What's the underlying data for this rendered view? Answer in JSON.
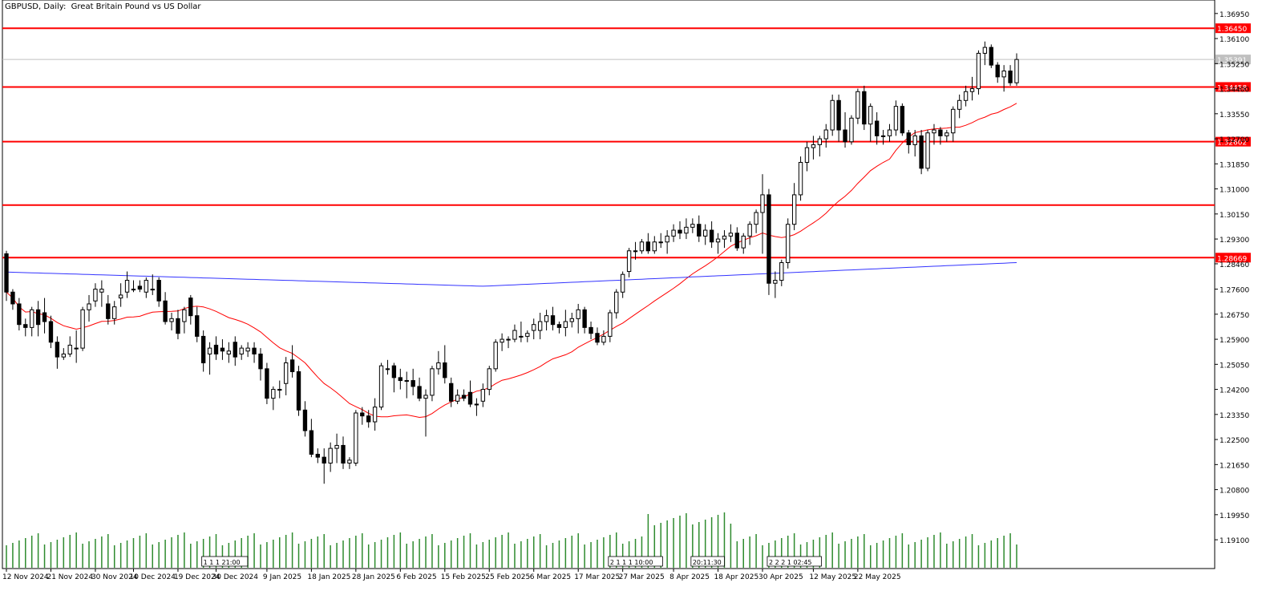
{
  "chart_data": {
    "type": "candlestick",
    "title": "GBPUSD, Daily:  Great Britain Pound vs US Dollar",
    "y_ticks": [
      "1.36950",
      "1.36100",
      "1.35250",
      "1.34400",
      "1.33550",
      "1.32700",
      "1.31850",
      "1.31000",
      "1.30150",
      "1.29300",
      "1.28460",
      "1.27600",
      "1.26750",
      "1.25900",
      "1.25050",
      "1.24200",
      "1.23350",
      "1.22500",
      "1.21650",
      "1.20800",
      "1.19950",
      "1.19100"
    ],
    "ylim": [
      1.1864,
      1.3719
    ],
    "x_tick_labels": [
      {
        "label": "12 Nov 2024",
        "i": 0
      },
      {
        "label": "21 Nov 2024",
        "i": 7
      },
      {
        "label": "30 Nov 2024",
        "i": 14
      },
      {
        "label": "10 Dec 2024",
        "i": 20
      },
      {
        "label": "19 Dec 2024",
        "i": 27
      },
      {
        "label": "30 Dec 2024",
        "i": 33
      },
      {
        "label": "9 Jan 2025",
        "i": 41
      },
      {
        "label": "18 Jan 2025",
        "i": 48
      },
      {
        "label": "28 Jan 2025",
        "i": 55
      },
      {
        "label": "6 Feb 2025",
        "i": 62
      },
      {
        "label": "15 Feb 2025",
        "i": 69
      },
      {
        "label": "25 Feb 2025",
        "i": 76
      },
      {
        "label": "6 Mar 2025",
        "i": 83
      },
      {
        "label": "17 Mar 2025",
        "i": 90
      },
      {
        "label": "27 Mar 2025",
        "i": 97
      },
      {
        "label": "8 Apr 2025",
        "i": 105
      },
      {
        "label": "18 Apr 2025",
        "i": 112
      },
      {
        "label": "30 Apr 2025",
        "i": 119
      },
      {
        "label": "12 May 2025",
        "i": 127
      },
      {
        "label": "22 May 2025",
        "i": 134
      }
    ],
    "current_price": "1.35391",
    "levels": [
      {
        "value": 1.3645,
        "label": "1.36450",
        "color": "#ff0000"
      },
      {
        "value": 1.34458,
        "label": "1.34458",
        "color": "#ff0000"
      },
      {
        "value": 1.32602,
        "label": "1.32602",
        "color": "#ff0000"
      },
      {
        "value": 1.3045,
        "label": "",
        "color": "#ff0000"
      },
      {
        "value": 1.28669,
        "label": "1.28669",
        "color": "#ff0000"
      }
    ],
    "period_separators": [
      {
        "i": 31,
        "label": "1|1|1|21:00"
      },
      {
        "i": 95,
        "label": "2|1|1|1|10:00"
      },
      {
        "i": 108,
        "label": "20:11:30"
      },
      {
        "i": 120,
        "label": "2|2|2|1|02:45"
      }
    ],
    "candles": [
      [
        1.288,
        1.289,
        1.272,
        1.275
      ],
      [
        1.275,
        1.276,
        1.269,
        1.271
      ],
      [
        1.271,
        1.273,
        1.262,
        1.264
      ],
      [
        1.264,
        1.266,
        1.26,
        1.263
      ],
      [
        1.263,
        1.27,
        1.26,
        1.269
      ],
      [
        1.269,
        1.272,
        1.26,
        1.264
      ],
      [
        1.268,
        1.273,
        1.261,
        1.265
      ],
      [
        1.265,
        1.267,
        1.256,
        1.258
      ],
      [
        1.258,
        1.26,
        1.249,
        1.253
      ],
      [
        1.253,
        1.256,
        1.252,
        1.254
      ],
      [
        1.254,
        1.26,
        1.253,
        1.257
      ],
      [
        1.256,
        1.262,
        1.251,
        1.256
      ],
      [
        1.256,
        1.27,
        1.255,
        1.269
      ],
      [
        1.269,
        1.274,
        1.265,
        1.271
      ],
      [
        1.272,
        1.278,
        1.27,
        1.276
      ],
      [
        1.275,
        1.279,
        1.27,
        1.276
      ],
      [
        1.271,
        1.274,
        1.264,
        1.266
      ],
      [
        1.266,
        1.272,
        1.264,
        1.27
      ],
      [
        1.273,
        1.278,
        1.27,
        1.274
      ],
      [
        1.275,
        1.282,
        1.273,
        1.279
      ],
      [
        1.276,
        1.279,
        1.275,
        1.276
      ],
      [
        1.277,
        1.279,
        1.275,
        1.276
      ],
      [
        1.275,
        1.28,
        1.273,
        1.279
      ],
      [
        1.276,
        1.281,
        1.274,
        1.276
      ],
      [
        1.279,
        1.28,
        1.27,
        1.272
      ],
      [
        1.272,
        1.275,
        1.264,
        1.265
      ],
      [
        1.265,
        1.268,
        1.262,
        1.266
      ],
      [
        1.266,
        1.269,
        1.259,
        1.261
      ],
      [
        1.265,
        1.27,
        1.261,
        1.269
      ],
      [
        1.273,
        1.274,
        1.264,
        1.267
      ],
      [
        1.267,
        1.27,
        1.258,
        1.26
      ],
      [
        1.26,
        1.262,
        1.248,
        1.251
      ],
      [
        1.254,
        1.258,
        1.247,
        1.256
      ],
      [
        1.257,
        1.26,
        1.252,
        1.254
      ],
      [
        1.256,
        1.259,
        1.252,
        1.255
      ],
      [
        1.254,
        1.258,
        1.251,
        1.255
      ],
      [
        1.258,
        1.26,
        1.25,
        1.253
      ],
      [
        1.254,
        1.257,
        1.252,
        1.256
      ],
      [
        1.255,
        1.258,
        1.253,
        1.256
      ],
      [
        1.256,
        1.258,
        1.251,
        1.254
      ],
      [
        1.254,
        1.256,
        1.245,
        1.249
      ],
      [
        1.249,
        1.251,
        1.237,
        1.239
      ],
      [
        1.239,
        1.243,
        1.235,
        1.242
      ],
      [
        1.242,
        1.245,
        1.239,
        1.242
      ],
      [
        1.244,
        1.253,
        1.24,
        1.251
      ],
      [
        1.252,
        1.257,
        1.246,
        1.248
      ],
      [
        1.248,
        1.25,
        1.233,
        1.235
      ],
      [
        1.235,
        1.238,
        1.226,
        1.228
      ],
      [
        1.228,
        1.232,
        1.219,
        1.22
      ],
      [
        1.22,
        1.222,
        1.217,
        1.219
      ],
      [
        1.219,
        1.222,
        1.21,
        1.217
      ],
      [
        1.217,
        1.224,
        1.214,
        1.222
      ],
      [
        1.222,
        1.227,
        1.217,
        1.223
      ],
      [
        1.223,
        1.226,
        1.215,
        1.217
      ],
      [
        1.217,
        1.219,
        1.215,
        1.218
      ],
      [
        1.217,
        1.235,
        1.216,
        1.234
      ],
      [
        1.234,
        1.236,
        1.23,
        1.233
      ],
      [
        1.233,
        1.235,
        1.229,
        1.231
      ],
      [
        1.231,
        1.239,
        1.228,
        1.236
      ],
      [
        1.236,
        1.251,
        1.235,
        1.25
      ],
      [
        1.249,
        1.252,
        1.247,
        1.249
      ],
      [
        1.25,
        1.251,
        1.241,
        1.246
      ],
      [
        1.246,
        1.249,
        1.242,
        1.245
      ],
      [
        1.245,
        1.248,
        1.239,
        1.245
      ],
      [
        1.245,
        1.249,
        1.24,
        1.243
      ],
      [
        1.243,
        1.246,
        1.238,
        1.239
      ],
      [
        1.239,
        1.242,
        1.226,
        1.24
      ],
      [
        1.24,
        1.25,
        1.238,
        1.249
      ],
      [
        1.249,
        1.255,
        1.247,
        1.251
      ],
      [
        1.251,
        1.257,
        1.244,
        1.246
      ],
      [
        1.244,
        1.246,
        1.236,
        1.238
      ],
      [
        1.238,
        1.242,
        1.237,
        1.24
      ],
      [
        1.24,
        1.242,
        1.238,
        1.239
      ],
      [
        1.241,
        1.245,
        1.236,
        1.237
      ],
      [
        1.237,
        1.239,
        1.233,
        1.237
      ],
      [
        1.238,
        1.244,
        1.236,
        1.242
      ],
      [
        1.242,
        1.25,
        1.24,
        1.249
      ],
      [
        1.249,
        1.259,
        1.248,
        1.258
      ],
      [
        1.258,
        1.261,
        1.255,
        1.259
      ],
      [
        1.259,
        1.26,
        1.256,
        1.259
      ],
      [
        1.259,
        1.264,
        1.258,
        1.262
      ],
      [
        1.26,
        1.265,
        1.258,
        1.26
      ],
      [
        1.26,
        1.262,
        1.258,
        1.261
      ],
      [
        1.262,
        1.266,
        1.259,
        1.264
      ],
      [
        1.262,
        1.268,
        1.259,
        1.265
      ],
      [
        1.265,
        1.269,
        1.262,
        1.267
      ],
      [
        1.267,
        1.27,
        1.262,
        1.264
      ],
      [
        1.264,
        1.265,
        1.261,
        1.263
      ],
      [
        1.263,
        1.269,
        1.26,
        1.265
      ],
      [
        1.265,
        1.268,
        1.263,
        1.266
      ],
      [
        1.266,
        1.271,
        1.261,
        1.269
      ],
      [
        1.269,
        1.27,
        1.261,
        1.263
      ],
      [
        1.263,
        1.265,
        1.259,
        1.261
      ],
      [
        1.261,
        1.263,
        1.257,
        1.258
      ],
      [
        1.258,
        1.262,
        1.257,
        1.26
      ],
      [
        1.26,
        1.269,
        1.258,
        1.268
      ],
      [
        1.268,
        1.276,
        1.266,
        1.275
      ],
      [
        1.275,
        1.282,
        1.273,
        1.281
      ],
      [
        1.282,
        1.29,
        1.28,
        1.289
      ],
      [
        1.289,
        1.292,
        1.286,
        1.289
      ],
      [
        1.289,
        1.293,
        1.288,
        1.292
      ],
      [
        1.292,
        1.295,
        1.288,
        1.289
      ],
      [
        1.289,
        1.294,
        1.288,
        1.292
      ],
      [
        1.292,
        1.295,
        1.29,
        1.292
      ],
      [
        1.292,
        1.296,
        1.288,
        1.294
      ],
      [
        1.294,
        1.298,
        1.292,
        1.296
      ],
      [
        1.296,
        1.299,
        1.293,
        1.295
      ]
    ],
    "volumes_note": "volume histogram bars",
    "ma_red_note": "20-period moving average",
    "ma_blue_note": "200-period moving average"
  }
}
